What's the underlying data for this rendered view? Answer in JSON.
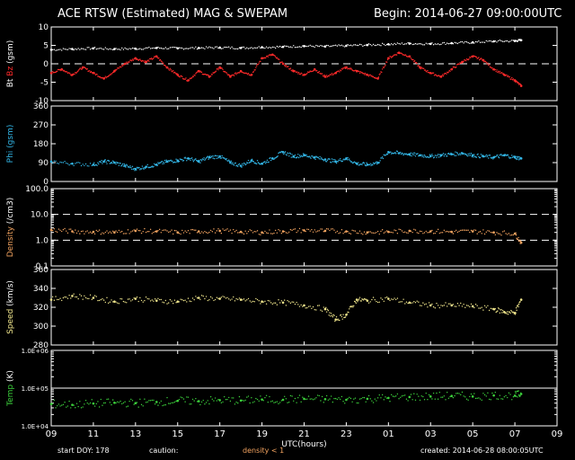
{
  "header": {
    "title": "ACE RTSW (Estimated) MAG & SWEPAM",
    "begin": "Begin: 2014-06-27 09:00:00UTC"
  },
  "footer": {
    "start_doy": "start DOY: 178",
    "caution": "caution:",
    "density_note": "density < 1",
    "created": "created: 2014-06-28 08:00:05UTC"
  },
  "colors": {
    "background": "#000000",
    "bt": "#ffffff",
    "bz": "#ff2a2a",
    "phi": "#33b7e8",
    "density": "#f4a460",
    "speed": "#f0e68c",
    "temp": "#3cd23c"
  },
  "chart_data": {
    "type": "scatter",
    "x_label": "UTC(hours)",
    "x_ticks": [
      "09",
      "11",
      "13",
      "15",
      "17",
      "19",
      "21",
      "23",
      "01",
      "03",
      "05",
      "07",
      "09"
    ],
    "x_range_hours": [
      0,
      24
    ],
    "panels": [
      {
        "id": "mag",
        "ylabel_parts": [
          "Bt",
          "Bz",
          "(gsm)"
        ],
        "ylim": [
          -10,
          10
        ],
        "yticks": [
          "10",
          "5",
          "0",
          "-5",
          "-10"
        ],
        "ref_lines": [
          0
        ],
        "series": [
          {
            "name": "Bt",
            "color_key": "bt",
            "points": [
              [
                0,
                3.8
              ],
              [
                1,
                4
              ],
              [
                2,
                4.2
              ],
              [
                3,
                4
              ],
              [
                4,
                4.1
              ],
              [
                5,
                4.3
              ],
              [
                6,
                4.2
              ],
              [
                7,
                4.3
              ],
              [
                8,
                4.4
              ],
              [
                9,
                4.3
              ],
              [
                10,
                4.5
              ],
              [
                11,
                4.6
              ],
              [
                12,
                4.8
              ],
              [
                13,
                4.7
              ],
              [
                14,
                4.9
              ],
              [
                15,
                5.1
              ],
              [
                16,
                5.3
              ],
              [
                17,
                5.5
              ],
              [
                18,
                5.4
              ],
              [
                19,
                5.6
              ],
              [
                20,
                5.8
              ],
              [
                21,
                6.1
              ],
              [
                22,
                6.2
              ],
              [
                22.3,
                6.4
              ]
            ]
          },
          {
            "name": "Bz",
            "color_key": "bz",
            "points": [
              [
                0,
                -2.5
              ],
              [
                0.5,
                -1.5
              ],
              [
                1,
                -3
              ],
              [
                1.5,
                -1
              ],
              [
                2,
                -2.5
              ],
              [
                2.5,
                -4
              ],
              [
                3,
                -2
              ],
              [
                3.5,
                0
              ],
              [
                4,
                1.5
              ],
              [
                4.5,
                0.5
              ],
              [
                5,
                2
              ],
              [
                5.5,
                -1
              ],
              [
                6,
                -3
              ],
              [
                6.5,
                -4.5
              ],
              [
                7,
                -2
              ],
              [
                7.5,
                -3.5
              ],
              [
                8,
                -1
              ],
              [
                8.5,
                -3.5
              ],
              [
                9,
                -2
              ],
              [
                9.5,
                -3
              ],
              [
                10,
                1.5
              ],
              [
                10.5,
                2.5
              ],
              [
                11,
                0
              ],
              [
                11.5,
                -2
              ],
              [
                12,
                -3
              ],
              [
                12.5,
                -1.5
              ],
              [
                13,
                -3.5
              ],
              [
                13.5,
                -2.5
              ],
              [
                14,
                -1
              ],
              [
                14.5,
                -2
              ],
              [
                15,
                -3
              ],
              [
                15.5,
                -4
              ],
              [
                16,
                1.5
              ],
              [
                16.5,
                3
              ],
              [
                17,
                2
              ],
              [
                17.5,
                -1
              ],
              [
                18,
                -2.5
              ],
              [
                18.5,
                -3.5
              ],
              [
                19,
                -1.5
              ],
              [
                19.5,
                0.5
              ],
              [
                20,
                2
              ],
              [
                20.5,
                1
              ],
              [
                21,
                -1.5
              ],
              [
                21.5,
                -3
              ],
              [
                22,
                -4.5
              ],
              [
                22.3,
                -6
              ]
            ]
          }
        ]
      },
      {
        "id": "phi",
        "ylabel_parts": [
          "Phi",
          "(gsm)"
        ],
        "ylim": [
          0,
          360
        ],
        "yticks": [
          "360",
          "270",
          "180",
          "90",
          "0"
        ],
        "ref_lines": [],
        "series": [
          {
            "name": "Phi",
            "color_key": "phi",
            "points": [
              [
                0,
                95
              ],
              [
                1,
                85
              ],
              [
                2,
                80
              ],
              [
                2.5,
                95
              ],
              [
                3,
                90
              ],
              [
                3.5,
                75
              ],
              [
                4,
                60
              ],
              [
                4.5,
                70
              ],
              [
                5,
                80
              ],
              [
                5.5,
                95
              ],
              [
                6,
                100
              ],
              [
                6.5,
                110
              ],
              [
                7,
                95
              ],
              [
                7.5,
                115
              ],
              [
                8,
                120
              ],
              [
                8.5,
                90
              ],
              [
                9,
                75
              ],
              [
                9.5,
                100
              ],
              [
                10,
                85
              ],
              [
                10.5,
                110
              ],
              [
                11,
                140
              ],
              [
                11.5,
                120
              ],
              [
                12,
                125
              ],
              [
                12.5,
                115
              ],
              [
                13,
                105
              ],
              [
                13.5,
                95
              ],
              [
                14,
                110
              ],
              [
                14.5,
                85
              ],
              [
                15,
                80
              ],
              [
                15.5,
                90
              ],
              [
                16,
                140
              ],
              [
                16.5,
                135
              ],
              [
                17,
                130
              ],
              [
                17.5,
                125
              ],
              [
                18,
                120
              ],
              [
                18.5,
                125
              ],
              [
                19,
                130
              ],
              [
                19.5,
                135
              ],
              [
                20,
                125
              ],
              [
                20.5,
                120
              ],
              [
                21,
                115
              ],
              [
                21.5,
                125
              ],
              [
                22,
                115
              ],
              [
                22.3,
                110
              ]
            ]
          }
        ]
      },
      {
        "id": "density",
        "ylabel_parts": [
          "Density",
          "(/cm3)"
        ],
        "ylim_log": [
          0.1,
          100
        ],
        "yticks": [
          "100.0",
          "10.0",
          "1.0",
          "0.1"
        ],
        "ref_lines": [
          10,
          1
        ],
        "series": [
          {
            "name": "Density",
            "color_key": "density",
            "points": [
              [
                0,
                2.5
              ],
              [
                1,
                2.2
              ],
              [
                2,
                2.1
              ],
              [
                3,
                2
              ],
              [
                4,
                2.3
              ],
              [
                5,
                2.2
              ],
              [
                6,
                2
              ],
              [
                7,
                2.2
              ],
              [
                8,
                2.3
              ],
              [
                9,
                2.1
              ],
              [
                10,
                2
              ],
              [
                11,
                2.2
              ],
              [
                12,
                2.4
              ],
              [
                13,
                2.3
              ],
              [
                14,
                2.2
              ],
              [
                15,
                2
              ],
              [
                16,
                2.1
              ],
              [
                17,
                2.3
              ],
              [
                18,
                2.2
              ],
              [
                19,
                2.1
              ],
              [
                20,
                2.2
              ],
              [
                21,
                2
              ],
              [
                22,
                1.8
              ],
              [
                22.3,
                0.8
              ]
            ]
          }
        ]
      },
      {
        "id": "speed",
        "ylabel_parts": [
          "Speed",
          "(km/s)"
        ],
        "ylim": [
          280,
          360
        ],
        "yticks": [
          "360",
          "340",
          "320",
          "300",
          "280"
        ],
        "ref_lines": [],
        "series": [
          {
            "name": "Speed",
            "color_key": "speed",
            "points": [
              [
                0,
                328
              ],
              [
                1,
                332
              ],
              [
                2,
                330
              ],
              [
                3,
                326
              ],
              [
                4,
                329
              ],
              [
                5,
                327
              ],
              [
                6,
                326
              ],
              [
                7,
                330
              ],
              [
                8,
                329
              ],
              [
                9,
                328
              ],
              [
                10,
                326
              ],
              [
                11,
                325
              ],
              [
                12,
                322
              ],
              [
                13,
                318
              ],
              [
                13.5,
                307
              ],
              [
                14,
                312
              ],
              [
                14.5,
                328
              ],
              [
                15,
                327
              ],
              [
                16,
                329
              ],
              [
                17,
                325
              ],
              [
                18,
                322
              ],
              [
                19,
                322
              ],
              [
                20,
                321
              ],
              [
                21,
                318
              ],
              [
                21.5,
                315
              ],
              [
                22,
                314
              ],
              [
                22.3,
                328
              ]
            ]
          }
        ]
      },
      {
        "id": "temp",
        "ylabel_parts": [
          "Temp",
          "(K)"
        ],
        "ylim_log": [
          10000,
          1000000
        ],
        "yticks": [
          "1.0E+06",
          "1.0E+05",
          "1.0E+04"
        ],
        "ref_lines": [
          100000
        ],
        "series": [
          {
            "name": "Temp",
            "color_key": "temp",
            "points": [
              [
                0,
                38000
              ],
              [
                1,
                36000
              ],
              [
                2,
                39000
              ],
              [
                3,
                41000
              ],
              [
                4,
                40000
              ],
              [
                5,
                43000
              ],
              [
                6,
                46000
              ],
              [
                7,
                45000
              ],
              [
                8,
                48000
              ],
              [
                9,
                47000
              ],
              [
                10,
                50000
              ],
              [
                11,
                49000
              ],
              [
                12,
                52000
              ],
              [
                13,
                51000
              ],
              [
                14,
                49000
              ],
              [
                15,
                52000
              ],
              [
                16,
                55000
              ],
              [
                17,
                58000
              ],
              [
                18,
                60000
              ],
              [
                19,
                62000
              ],
              [
                20,
                60000
              ],
              [
                21,
                64000
              ],
              [
                22,
                63000
              ],
              [
                22.3,
                70000
              ]
            ]
          }
        ]
      }
    ]
  }
}
